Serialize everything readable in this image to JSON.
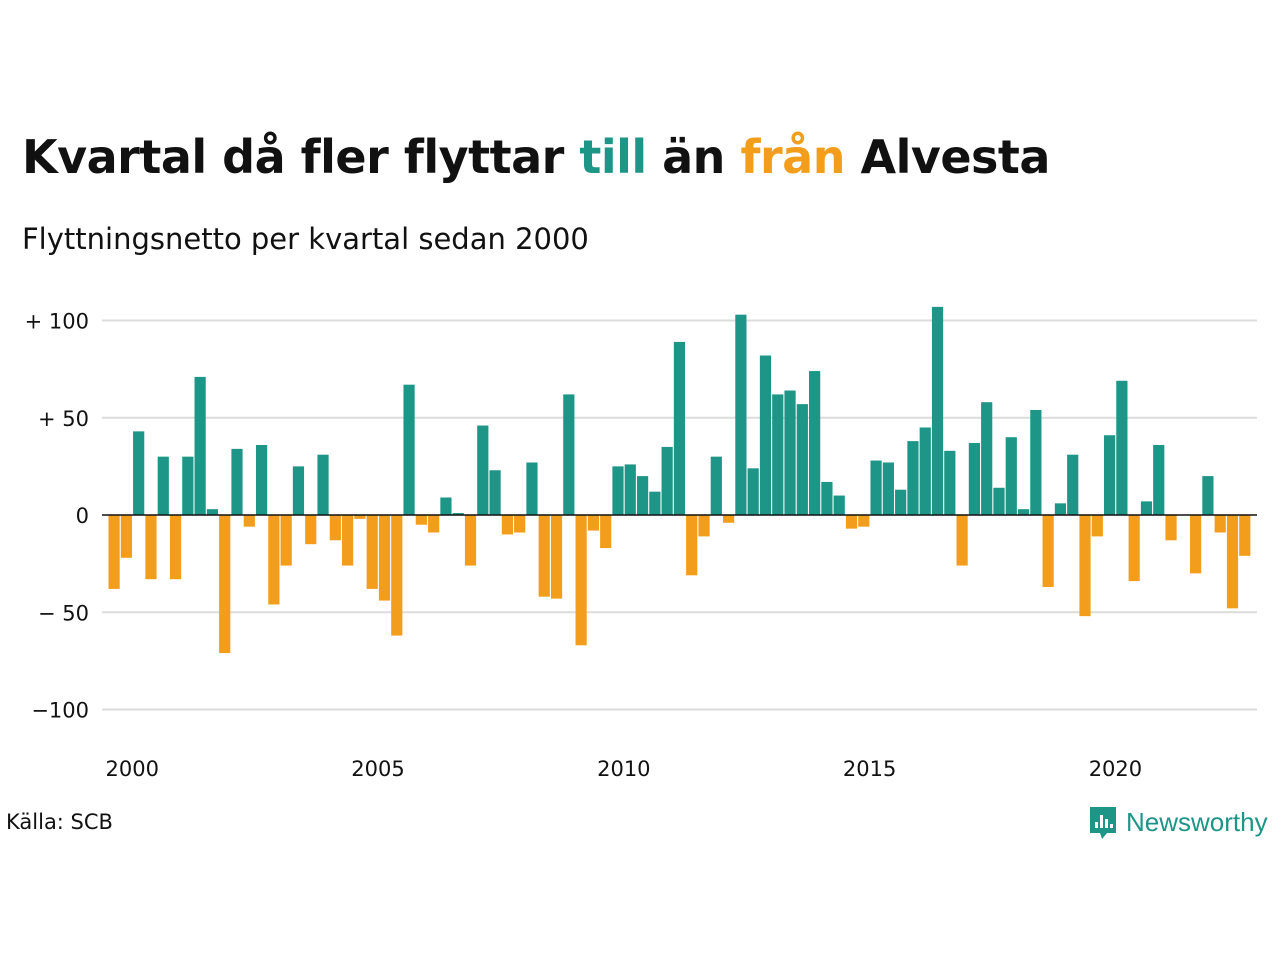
{
  "title": {
    "part1": "Kvartal då fler flyttar ",
    "till": "till",
    "part2": " än ",
    "fran": "från",
    "part3": " Alvesta"
  },
  "subtitle": "Flyttningsnetto per kvartal sedan 2000",
  "source": "Källa: SCB",
  "brand": "Newsworthy",
  "colors": {
    "positive": "#1d9587",
    "negative": "#f29e1c",
    "grid": "#dcdcdc",
    "axis": "#111111"
  },
  "chart_data": {
    "type": "bar",
    "x_start_year": 2000,
    "x_ticks": [
      "2000",
      "2005",
      "2010",
      "2015",
      "2020"
    ],
    "y_ticks": [
      {
        "value": 100,
        "label": "+ 100"
      },
      {
        "value": 50,
        "label": "+  50"
      },
      {
        "value": 0,
        "label": "0"
      },
      {
        "value": -50,
        "label": "− 50"
      },
      {
        "value": -100,
        "label": "−100"
      }
    ],
    "ylim": [
      -110,
      110
    ],
    "grid": true,
    "values": [
      -38,
      -22,
      43,
      -33,
      30,
      -33,
      30,
      71,
      3,
      -71,
      34,
      -6,
      36,
      -46,
      -26,
      25,
      -15,
      31,
      -13,
      -26,
      -2,
      -38,
      -44,
      -62,
      67,
      -5,
      -9,
      9,
      1,
      -26,
      46,
      23,
      -10,
      -9,
      27,
      -42,
      -43,
      62,
      -67,
      -8,
      -17,
      25,
      26,
      20,
      12,
      35,
      89,
      -31,
      -11,
      30,
      -4,
      103,
      24,
      82,
      62,
      64,
      57,
      74,
      17,
      10,
      -7,
      -6,
      28,
      27,
      13,
      38,
      45,
      107,
      33,
      -26,
      37,
      58,
      14,
      40,
      3,
      54,
      -37,
      6,
      31,
      -52,
      -11,
      41,
      69,
      -34,
      7,
      36,
      -13,
      0,
      -30,
      20,
      -9,
      -48,
      -21
    ]
  }
}
